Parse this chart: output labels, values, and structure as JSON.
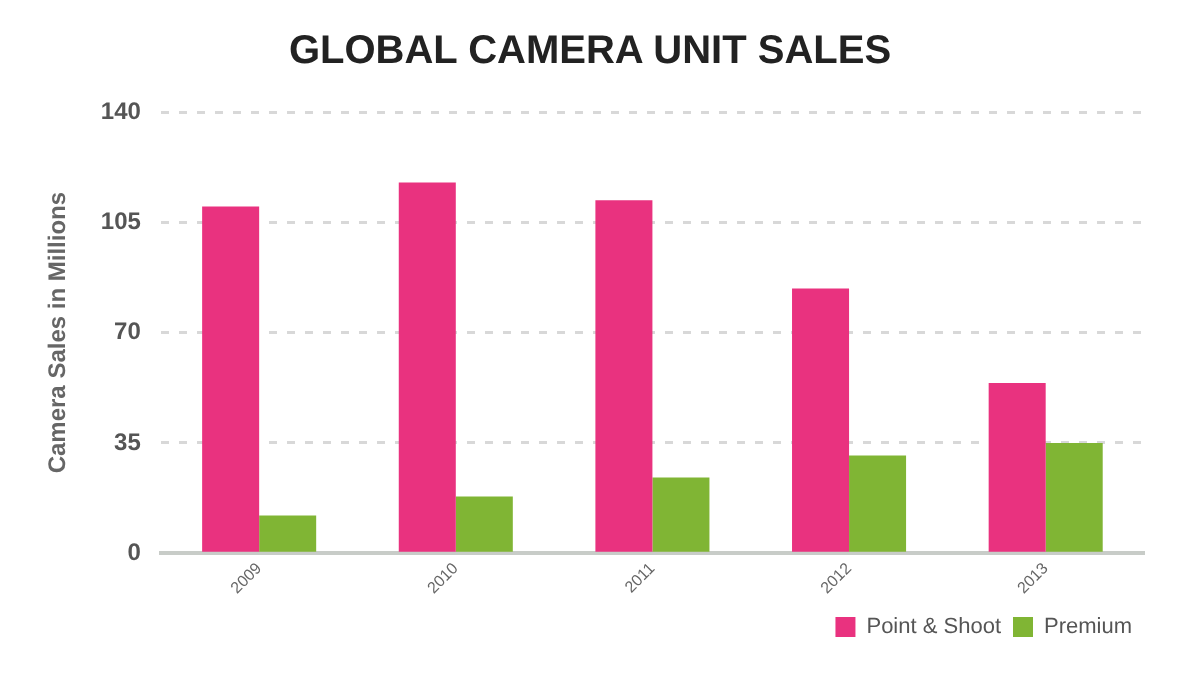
{
  "chart_data": {
    "type": "bar",
    "title": "GLOBAL CAMERA UNIT SALES",
    "ylabel": "Camera Sales in Millions",
    "categories": [
      "2009",
      "2010",
      "2011",
      "2012",
      "2013"
    ],
    "series": [
      {
        "name": "Point & Shoot",
        "color": "#e9327f",
        "values": [
          110,
          117.6,
          112,
          84,
          54
        ]
      },
      {
        "name": "Premium",
        "color": "#80b534",
        "values": [
          12,
          18,
          24,
          31,
          35
        ]
      }
    ],
    "ylim": [
      0,
      140
    ],
    "yticks": [
      0,
      35,
      70,
      105,
      140
    ],
    "grid": "y",
    "legend": "bottom right"
  }
}
